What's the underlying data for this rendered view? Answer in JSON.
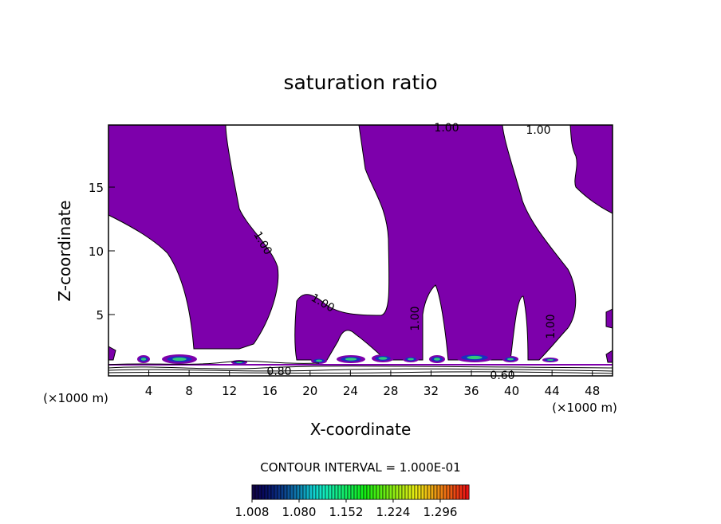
{
  "chart_data": {
    "type": "contour",
    "title": "saturation ratio",
    "x_label": "X-coordinate",
    "y_label": "Z-coordinate",
    "x_unit_left": "(×1000 m)",
    "x_unit_right": "(×1000 m)",
    "xlim": [
      0,
      50
    ],
    "ylim": [
      0,
      20
    ],
    "xticks": [
      4,
      8,
      12,
      16,
      20,
      24,
      28,
      32,
      36,
      40,
      44,
      48
    ],
    "yticks": [
      5,
      10,
      15
    ],
    "fill_color": "#7d00ab",
    "contour_labels": [
      "1.00",
      "1.00",
      "1.00",
      "1.00",
      "1.00",
      "1.00",
      "0.80",
      "0.60"
    ],
    "contour_interval": "CONTOUR INTERVAL = 1.000E-01",
    "colorbar": {
      "range": [
        1.008,
        1.34
      ],
      "ticks": [
        {
          "value": 1.008,
          "label": "1.008"
        },
        {
          "value": 1.08,
          "label": "1.080"
        },
        {
          "value": 1.152,
          "label": "1.152"
        },
        {
          "value": 1.224,
          "label": "1.224"
        },
        {
          "value": 1.296,
          "label": "1.296"
        }
      ]
    }
  }
}
